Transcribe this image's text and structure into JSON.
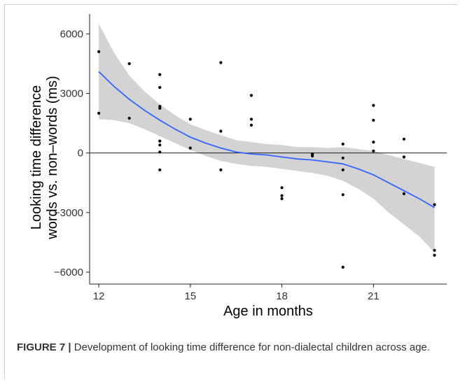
{
  "chart_data": {
    "type": "scatter",
    "xlabel": "Age in months",
    "ylabel_line1": "Looking time difference",
    "ylabel_line2": "words vs. non–words (ms)",
    "xlim": [
      11.7,
      23.4
    ],
    "ylim": [
      -6600,
      7000
    ],
    "xticks": [
      12,
      15,
      18,
      21
    ],
    "yticks": [
      6000,
      3000,
      0,
      -3000,
      -6000
    ],
    "ytick_labels": [
      "6000",
      "3000",
      "0",
      "−3000",
      "−6000"
    ],
    "reference_line_y": 0,
    "grid": false,
    "points": [
      {
        "x": 12,
        "y": 5100
      },
      {
        "x": 12,
        "y": 2000
      },
      {
        "x": 13,
        "y": 4500
      },
      {
        "x": 13,
        "y": 1750
      },
      {
        "x": 14,
        "y": 3950
      },
      {
        "x": 14,
        "y": 3300
      },
      {
        "x": 14,
        "y": 2350
      },
      {
        "x": 14,
        "y": 2250
      },
      {
        "x": 14,
        "y": 600
      },
      {
        "x": 14,
        "y": 400
      },
      {
        "x": 14,
        "y": 50
      },
      {
        "x": 14,
        "y": -850
      },
      {
        "x": 15,
        "y": 1700
      },
      {
        "x": 15,
        "y": 250
      },
      {
        "x": 16,
        "y": 4550
      },
      {
        "x": 16,
        "y": 1100
      },
      {
        "x": 16,
        "y": -850
      },
      {
        "x": 17,
        "y": 2900
      },
      {
        "x": 17,
        "y": 1700
      },
      {
        "x": 17,
        "y": 1400
      },
      {
        "x": 18,
        "y": -1750
      },
      {
        "x": 18,
        "y": -2150
      },
      {
        "x": 18,
        "y": -2300
      },
      {
        "x": 19,
        "y": -50
      },
      {
        "x": 19,
        "y": -150
      },
      {
        "x": 20,
        "y": 450
      },
      {
        "x": 20,
        "y": -250
      },
      {
        "x": 20,
        "y": -850
      },
      {
        "x": 20,
        "y": -2100
      },
      {
        "x": 20,
        "y": -5750
      },
      {
        "x": 21,
        "y": 2400
      },
      {
        "x": 21,
        "y": 1650
      },
      {
        "x": 21,
        "y": 550
      },
      {
        "x": 21,
        "y": 100
      },
      {
        "x": 22,
        "y": 700
      },
      {
        "x": 22,
        "y": -200
      },
      {
        "x": 22,
        "y": -2050
      },
      {
        "x": 23,
        "y": -2600
      },
      {
        "x": 23,
        "y": -4900
      },
      {
        "x": 23,
        "y": -5150
      }
    ],
    "fit": {
      "x": [
        12,
        12.5,
        13,
        13.5,
        14,
        14.5,
        15,
        15.5,
        16,
        16.5,
        17,
        17.5,
        18,
        18.5,
        19,
        19.5,
        20,
        20.5,
        21,
        21.5,
        22,
        22.5,
        23
      ],
      "y": [
        4100,
        3350,
        2700,
        2150,
        1650,
        1200,
        800,
        500,
        250,
        50,
        -50,
        -100,
        -200,
        -300,
        -350,
        -450,
        -550,
        -800,
        -1100,
        -1500,
        -1900,
        -2300,
        -2750
      ],
      "lower": [
        1700,
        1650,
        1500,
        1200,
        850,
        500,
        150,
        -150,
        -400,
        -550,
        -650,
        -700,
        -800,
        -900,
        -1000,
        -1150,
        -1400,
        -1800,
        -2300,
        -3000,
        -3600,
        -4200,
        -5000
      ],
      "upper": [
        6500,
        5050,
        3900,
        3100,
        2450,
        1900,
        1450,
        1150,
        900,
        650,
        550,
        450,
        400,
        300,
        300,
        250,
        300,
        200,
        100,
        -100,
        -300,
        -500,
        -700
      ],
      "line_color": "#3366ff",
      "band_color": "#d3d3d3"
    }
  },
  "caption": {
    "label": "FIGURE 7",
    "separator": " | ",
    "text": "Development of looking time difference for non-dialectal children across age."
  }
}
